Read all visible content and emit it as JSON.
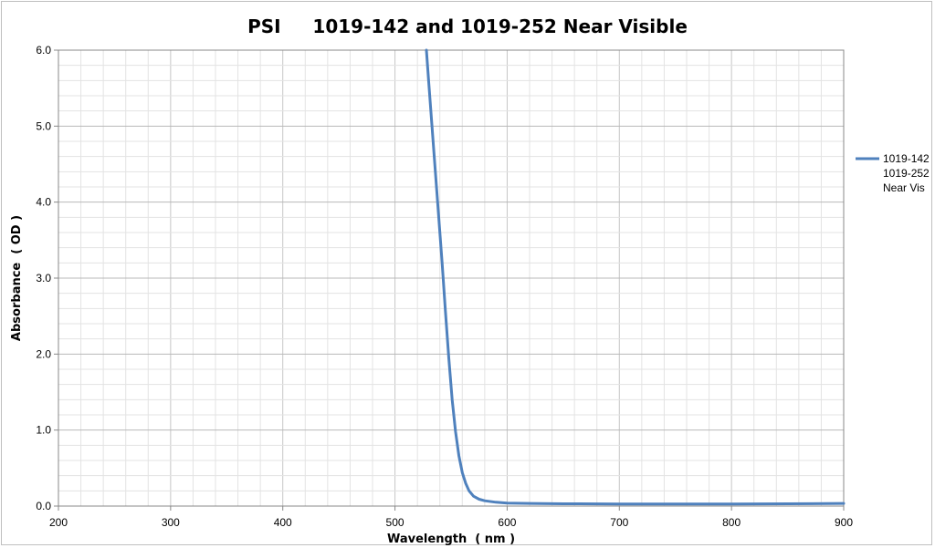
{
  "chart_data": {
    "type": "line",
    "title": "PSI     1019-142 and 1019-252 Near Visible",
    "xlabel": "Wavelength  ( nm )",
    "ylabel": "Absorbance  ( OD )",
    "xlim": [
      200,
      900
    ],
    "ylim": [
      0,
      6
    ],
    "x_ticks": [
      "200",
      "300",
      "400",
      "500",
      "600",
      "700",
      "800",
      "900"
    ],
    "y_ticks": [
      "0.0",
      "1.0",
      "2.0",
      "3.0",
      "4.0",
      "5.0",
      "6.0"
    ],
    "grid": true,
    "legend_position": "right",
    "series": [
      {
        "name": [
          "1019-142",
          "1019-252",
          "Near Vis"
        ],
        "color": "#4f81bd",
        "x": [
          528,
          530,
          533,
          536,
          539,
          542,
          545,
          548,
          551,
          554,
          557,
          560,
          563,
          566,
          570,
          575,
          580,
          590,
          600,
          620,
          650,
          700,
          750,
          800,
          850,
          900
        ],
        "y": [
          6.0,
          5.6,
          5.0,
          4.4,
          3.8,
          3.2,
          2.55,
          1.95,
          1.4,
          0.98,
          0.66,
          0.44,
          0.3,
          0.2,
          0.13,
          0.09,
          0.07,
          0.05,
          0.04,
          0.035,
          0.03,
          0.028,
          0.027,
          0.027,
          0.03,
          0.035
        ]
      }
    ]
  }
}
